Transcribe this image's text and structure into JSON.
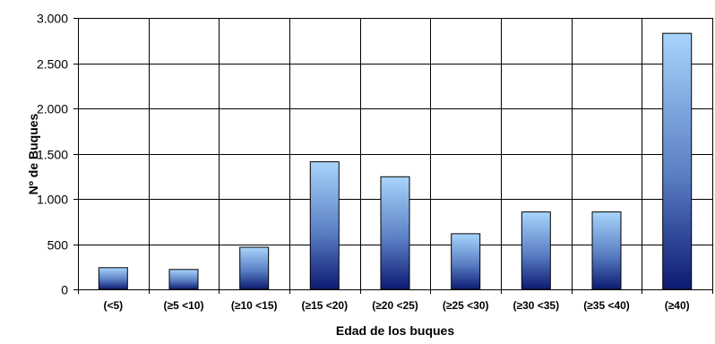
{
  "chart_data": {
    "type": "bar",
    "categories": [
      "(<5)",
      "(≥5  <10)",
      "(≥10  <15)",
      "(≥15  <20)",
      "(≥20  <25)",
      "(≥25  <30)",
      "(≥30  <35)",
      "(≥35  <40)",
      "(≥40)"
    ],
    "values": [
      240,
      220,
      465,
      1410,
      1245,
      615,
      855,
      855,
      2830
    ],
    "xlabel": "Edad de los buques",
    "ylabel": "Nº de Buques",
    "ylim": [
      0,
      3000
    ],
    "y_ticks": [
      0,
      500,
      1000,
      1500,
      2000,
      2500,
      3000
    ],
    "y_tick_labels": [
      "0",
      "500",
      "1.000",
      "1.500",
      "2.000",
      "2.500",
      "3.000"
    ],
    "grid": "horizontal and vertical",
    "legend": "none",
    "colors": {
      "bar_top": "#a8d4fb",
      "bar_mid": "#5a7fc4",
      "bar_bottom": "#0d1a72",
      "axis": "#000000",
      "grid": "#000000"
    }
  }
}
